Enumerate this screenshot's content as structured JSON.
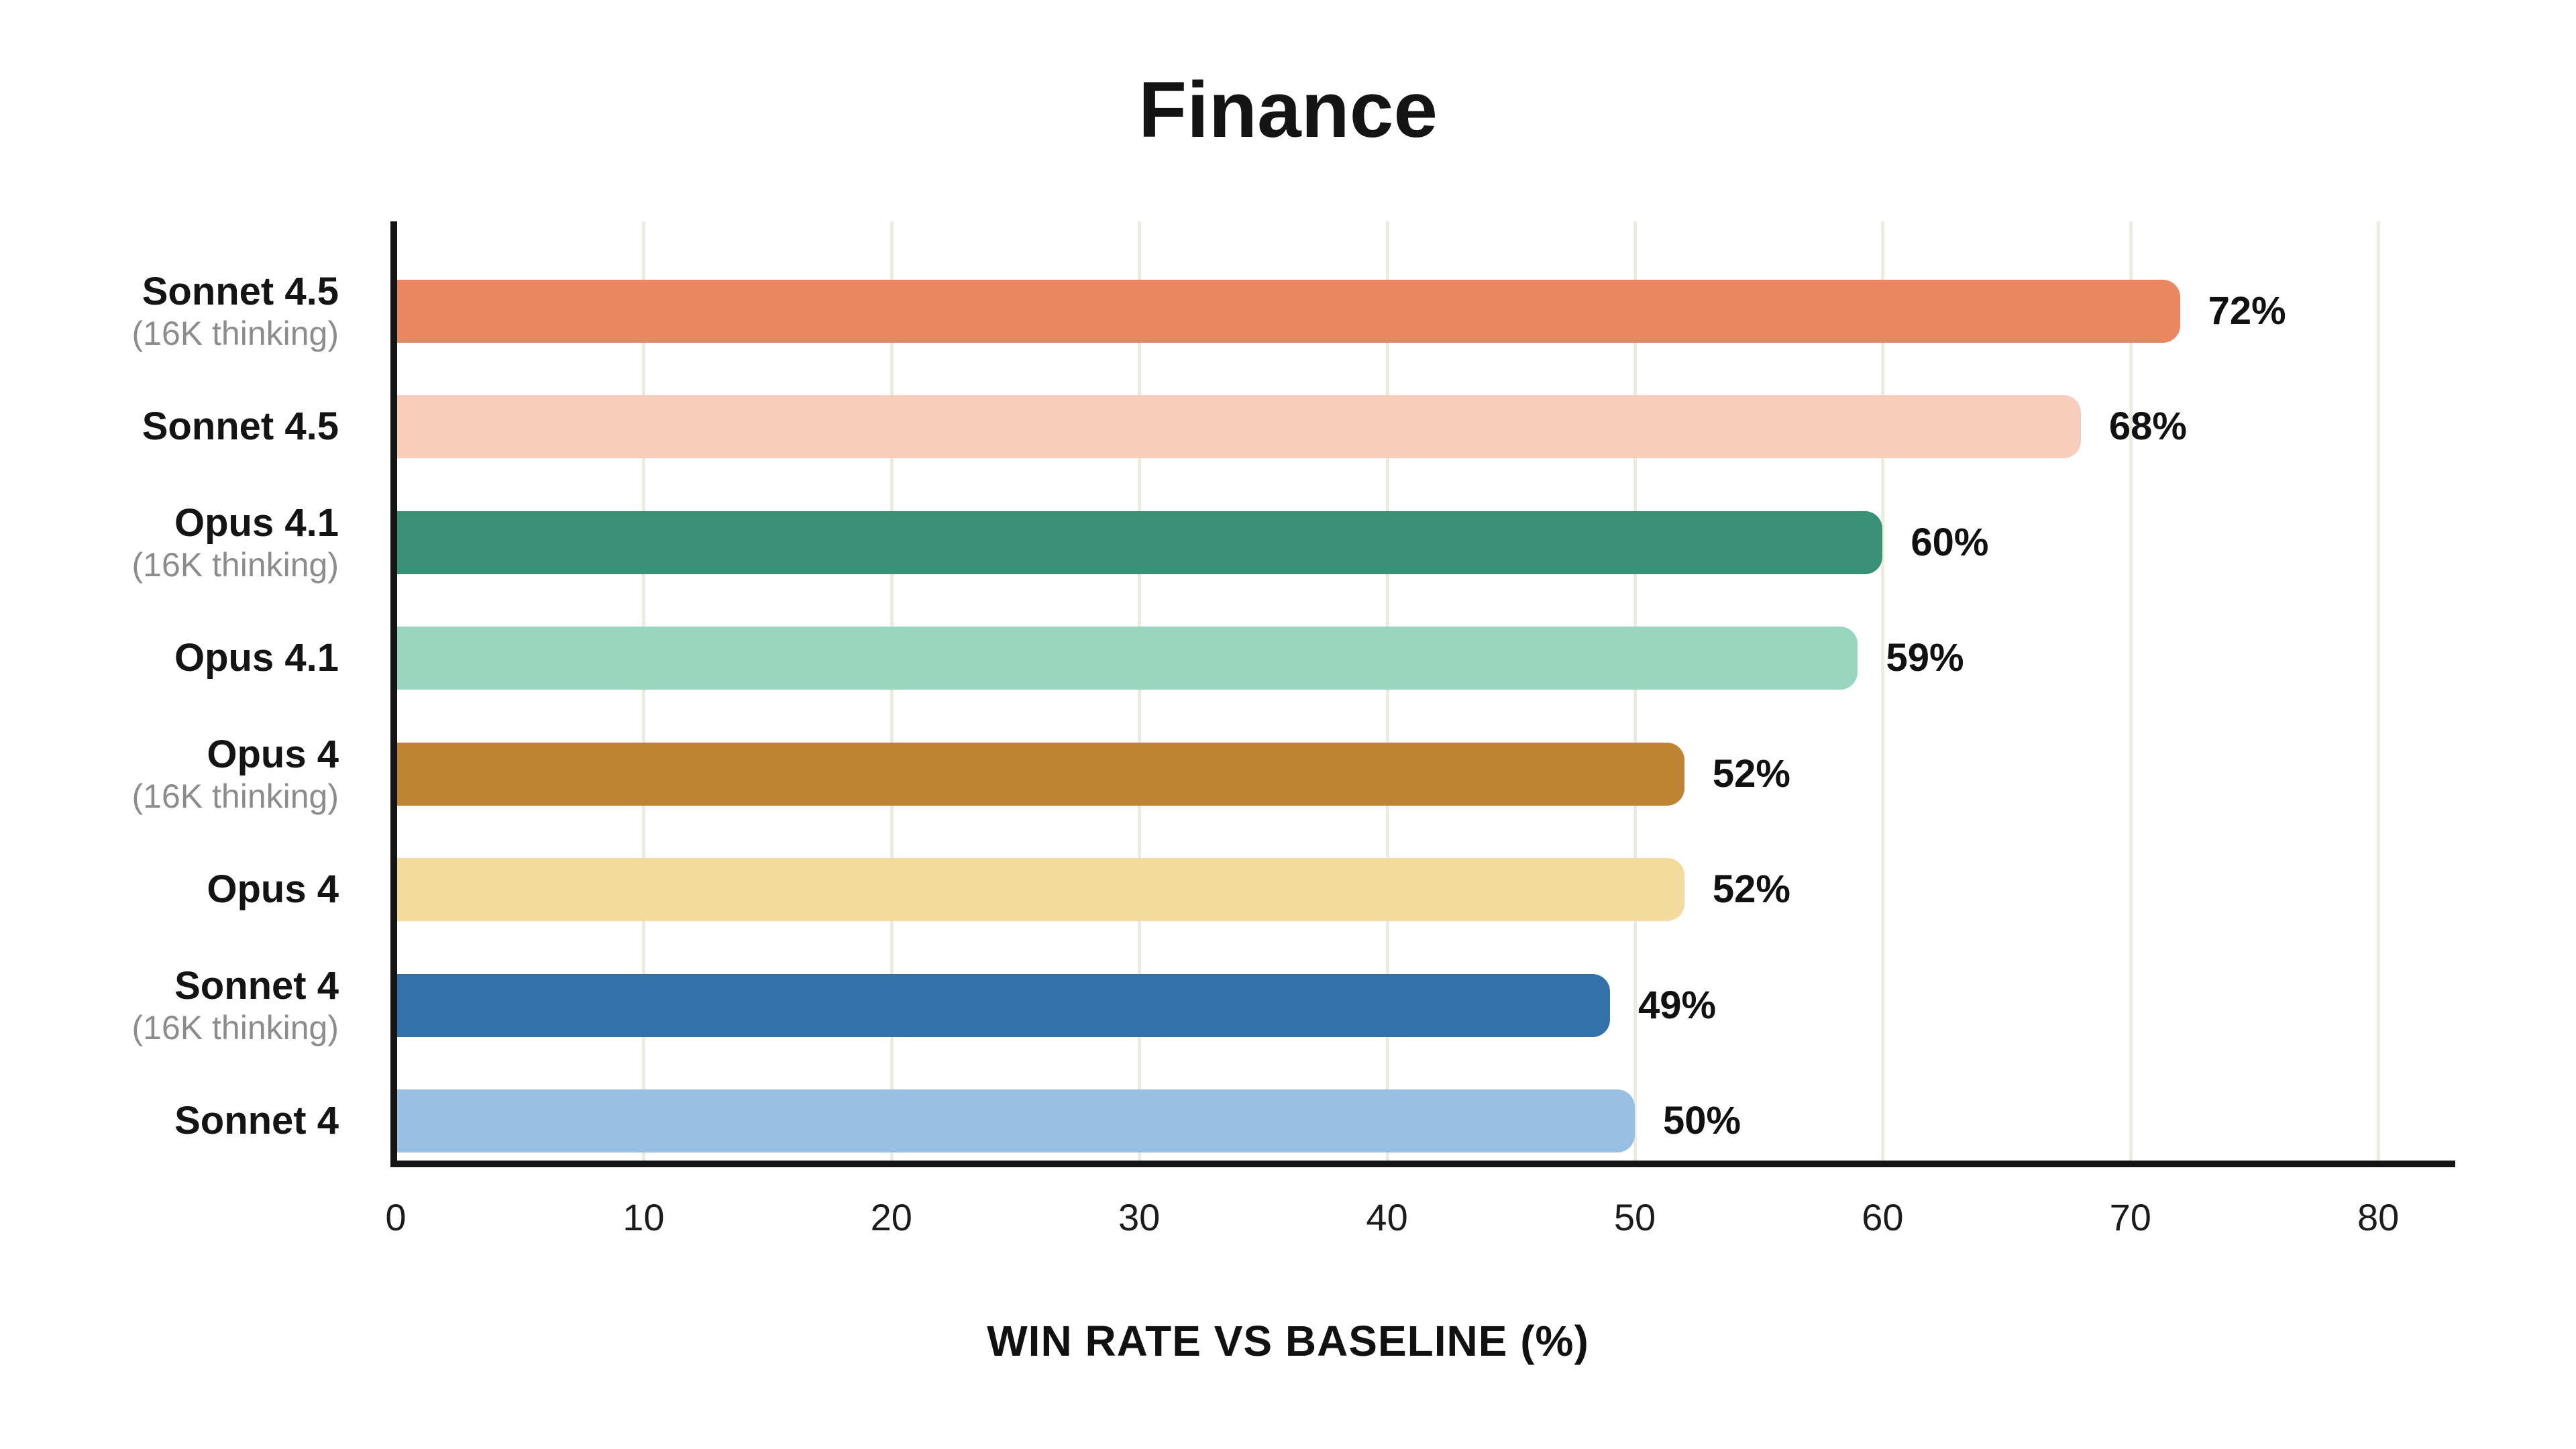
{
  "title": "Finance",
  "chart_data": {
    "type": "bar",
    "orientation": "horizontal",
    "title": "Finance",
    "xlabel": "WIN RATE VS BASELINE (%)",
    "xlim": [
      0,
      83
    ],
    "x_ticks": [
      0,
      10,
      20,
      30,
      40,
      50,
      60,
      70,
      80
    ],
    "grid": true,
    "legend": "none",
    "categories": [
      "Sonnet 4.5",
      "Sonnet 4.5",
      "Opus 4.1",
      "Opus 4.1",
      "Opus 4",
      "Opus 4",
      "Sonnet 4",
      "Sonnet 4"
    ],
    "subcategories": [
      "(16K thinking)",
      "",
      "(16K thinking)",
      "",
      "(16K thinking)",
      "",
      "(16K thinking)",
      ""
    ],
    "values": [
      72,
      68,
      60,
      59,
      52,
      52,
      49,
      50
    ],
    "value_labels": [
      "72%",
      "68%",
      "60%",
      "59%",
      "52%",
      "52%",
      "49%",
      "50%"
    ],
    "bar_colors": [
      "#EB8662",
      "#F6CDBA",
      "#3A9074",
      "#99D5BE",
      "#BE8433",
      "#F3DB9D",
      "#3470A9",
      "#98C0E5"
    ],
    "colors": {
      "background": "#FFFFFF",
      "gridline": "#EDEBE1",
      "axis": "#151515",
      "title_text": "#141414",
      "label_text": "#141414",
      "sublabel_text": "#8C8C8C",
      "value_text": "#111111"
    }
  }
}
